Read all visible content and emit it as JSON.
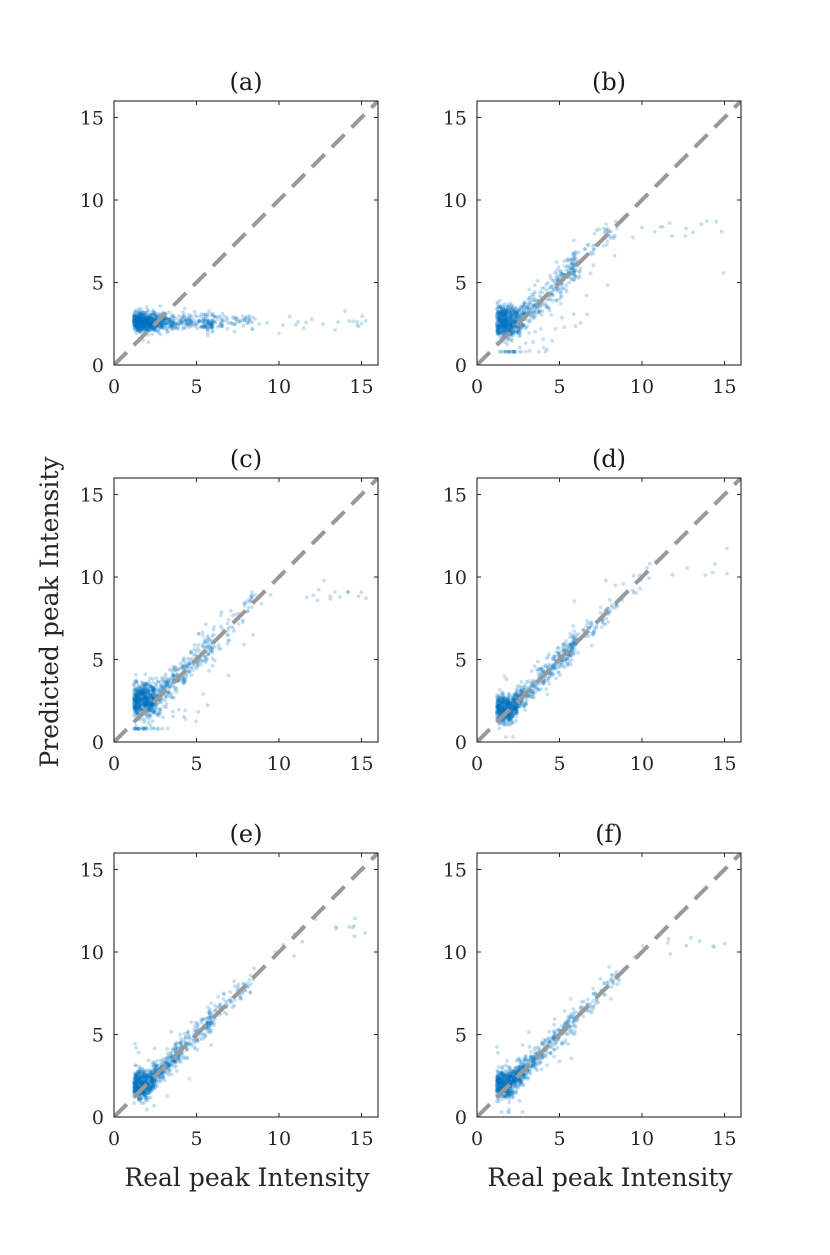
{
  "figure": {
    "ylabel": "Predicted peak Intensity",
    "xlabel_left": "Real peak Intensity",
    "xlabel_right": "Real peak Intensity"
  },
  "colors": {
    "points": "#0072bd",
    "reference_line": "#999999",
    "axes": "#262626"
  },
  "chart_data": [
    {
      "type": "scatter",
      "title": "(a)",
      "xlim": [
        0,
        16
      ],
      "ylim": [
        0,
        16
      ],
      "xticks": [
        "0",
        "5",
        "10",
        "15"
      ],
      "yticks": [
        "0",
        "5",
        "10",
        "15"
      ],
      "reference_line": "y = x",
      "mode": "flat",
      "predicted_level": 2.6
    },
    {
      "type": "scatter",
      "title": "(b)",
      "xlim": [
        0,
        16
      ],
      "ylim": [
        0,
        16
      ],
      "xticks": [
        "0",
        "5",
        "10",
        "15"
      ],
      "yticks": [
        "0",
        "5",
        "10",
        "15"
      ],
      "reference_line": "y = x",
      "mode": "saturating",
      "saturation_level": 8.4
    },
    {
      "type": "scatter",
      "title": "(c)",
      "xlim": [
        0,
        16
      ],
      "ylim": [
        0,
        16
      ],
      "xticks": [
        "0",
        "5",
        "10",
        "15"
      ],
      "yticks": [
        "0",
        "5",
        "10",
        "15"
      ],
      "reference_line": "y = x",
      "mode": "saturating",
      "saturation_level": 9.1
    },
    {
      "type": "scatter",
      "title": "(d)",
      "xlim": [
        0,
        16
      ],
      "ylim": [
        0,
        16
      ],
      "xticks": [
        "0",
        "5",
        "10",
        "15"
      ],
      "yticks": [
        "0",
        "5",
        "10",
        "15"
      ],
      "reference_line": "y = x",
      "mode": "diagonal",
      "saturation_level": 10.6
    },
    {
      "type": "scatter",
      "title": "(e)",
      "xlim": [
        0,
        16
      ],
      "ylim": [
        0,
        16
      ],
      "xticks": [
        "0",
        "5",
        "10",
        "15"
      ],
      "yticks": [
        "0",
        "5",
        "10",
        "15"
      ],
      "reference_line": "y = x",
      "mode": "diagonal",
      "saturation_level": 11.5
    },
    {
      "type": "scatter",
      "title": "(f)",
      "xlim": [
        0,
        16
      ],
      "ylim": [
        0,
        16
      ],
      "xticks": [
        "0",
        "5",
        "10",
        "15"
      ],
      "yticks": [
        "0",
        "5",
        "10",
        "15"
      ],
      "reference_line": "y = x",
      "mode": "diagonal",
      "saturation_level": 10.4
    }
  ]
}
